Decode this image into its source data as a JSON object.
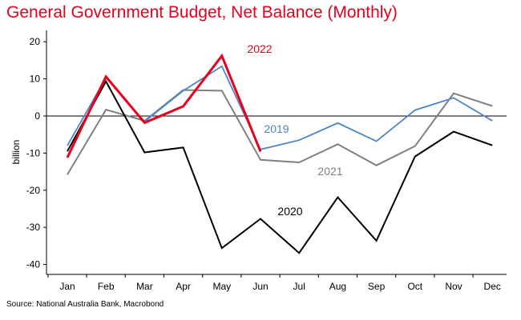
{
  "chart_data": {
    "type": "line",
    "title": "General Government Budget, Net Balance (Monthly)",
    "ylabel": "billion",
    "xlabel": "",
    "source": "Source: National Australia Bank, Macrobond",
    "categories": [
      "Jan",
      "Feb",
      "Mar",
      "Apr",
      "May",
      "Jun",
      "Jul",
      "Aug",
      "Sep",
      "Oct",
      "Nov",
      "Dec"
    ],
    "ylim": [
      -42,
      22
    ],
    "yticks": [
      20,
      10,
      0,
      -10,
      -20,
      -30,
      -40
    ],
    "grid": false,
    "zero_line": true,
    "legend": "none (series labelled directly on chart)",
    "series": [
      {
        "name": "2021",
        "color": "#808080",
        "values": [
          -15.8,
          1.7,
          -1.3,
          7.0,
          6.8,
          -11.8,
          -12.5,
          -7.6,
          -13.3,
          -8.1,
          6.1,
          2.7
        ]
      },
      {
        "name": "2020",
        "color": "#000000",
        "values": [
          -9.5,
          9.3,
          -9.8,
          -8.5,
          -35.6,
          -27.7,
          -36.9,
          -21.9,
          -33.6,
          -10.9,
          -4.2,
          -7.9
        ]
      },
      {
        "name": "2019",
        "color": "#4a86c8",
        "values": [
          -8.0,
          10.3,
          -1.5,
          6.8,
          13.4,
          -9.0,
          -6.5,
          -1.9,
          -6.8,
          1.6,
          4.9,
          -1.3
        ]
      },
      {
        "name": "2022",
        "color": "#e8001c",
        "values": [
          -11.2,
          10.6,
          -1.8,
          2.6,
          16.2,
          -9.6,
          null,
          null,
          null,
          null,
          null,
          null
        ]
      }
    ]
  }
}
